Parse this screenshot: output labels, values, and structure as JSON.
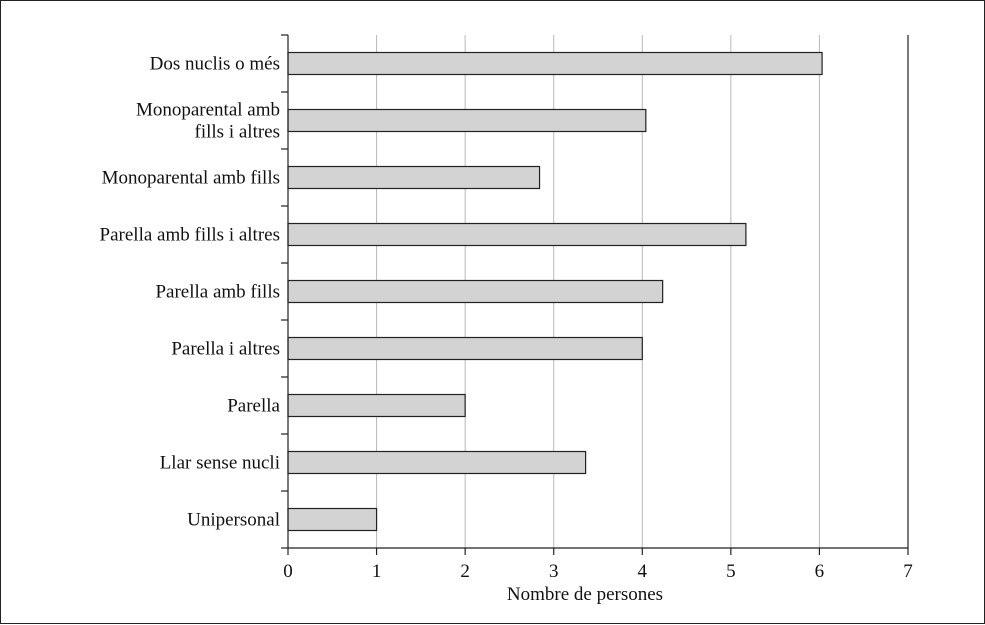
{
  "chart_data": {
    "type": "bar",
    "orientation": "horizontal",
    "categories": [
      "Dos nuclis o més",
      [
        "Monoparental amb",
        "fills i altres"
      ],
      "Monoparental amb fills",
      "Parella amb fills i altres",
      "Parella amb fills",
      "Parella i altres",
      "Parella",
      "Llar sense nucli",
      "Unipersonal"
    ],
    "values": [
      6.03,
      4.04,
      2.84,
      5.17,
      4.23,
      4.0,
      2.0,
      3.36,
      1.0
    ],
    "xlabel": "Nombre de persones",
    "ylabel": "",
    "xlim": [
      0,
      7
    ],
    "xticks": [
      "0",
      "1",
      "2",
      "3",
      "4",
      "5",
      "6",
      "7"
    ],
    "grid": "vertical",
    "colors": {
      "bar_fill": "#d3d3d3",
      "bar_stroke": "#222222",
      "grid": "#b8b8b8",
      "axis": "#222222"
    }
  }
}
